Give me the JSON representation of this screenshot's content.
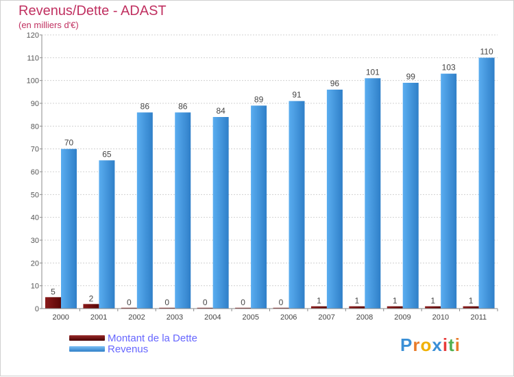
{
  "title": "Revenus/Dette - ADAST",
  "subtitle": "(en milliers d'€)",
  "logo_text": "Proxiti",
  "colors": {
    "debt": "#6b0a0a",
    "revenue": "#3a8fd6",
    "title": "#c03060",
    "legend": "#6666ff"
  },
  "chart_data": {
    "type": "bar",
    "categories": [
      "2000",
      "2001",
      "2002",
      "2003",
      "2004",
      "2005",
      "2006",
      "2007",
      "2008",
      "2009",
      "2010",
      "2011"
    ],
    "series": [
      {
        "name": "Montant de la Dette",
        "values": [
          5,
          2,
          0,
          0,
          0,
          0,
          0,
          1,
          1,
          1,
          1,
          1
        ]
      },
      {
        "name": "Revenus",
        "values": [
          70,
          65,
          86,
          86,
          84,
          89,
          91,
          96,
          101,
          99,
          103,
          110
        ]
      }
    ],
    "ylim": [
      0,
      120
    ],
    "yticks": [
      0,
      10,
      20,
      30,
      40,
      50,
      60,
      70,
      80,
      90,
      100,
      110,
      120
    ],
    "grid": true,
    "legend": "bottom-left"
  }
}
